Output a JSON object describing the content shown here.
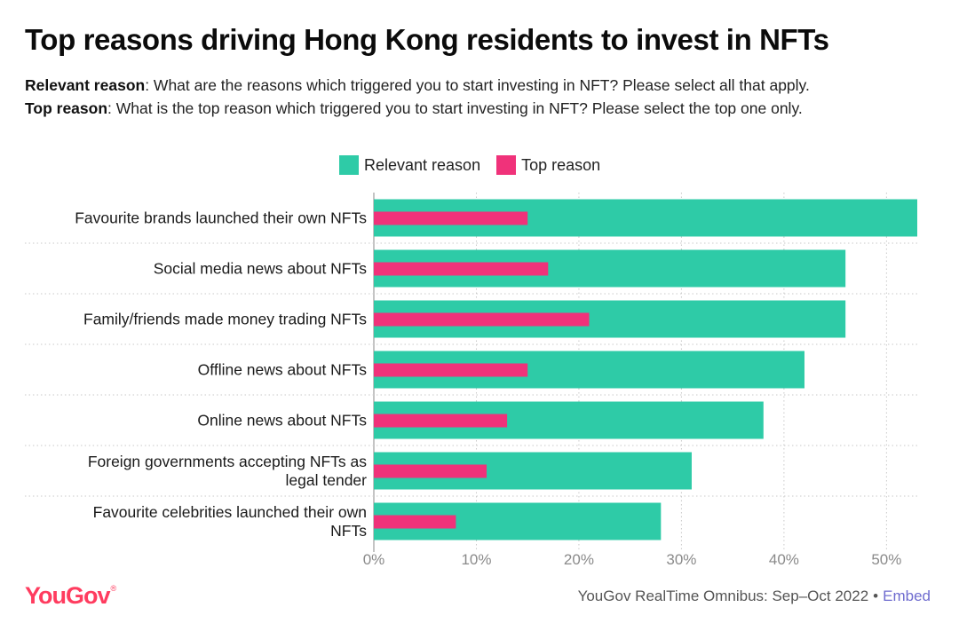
{
  "header": {
    "title": "Top reasons driving Hong Kong residents to invest in NFTs",
    "q1_label": "Relevant reason",
    "q1_text": ": What are the reasons which triggered you to start investing in NFT? Please select all that apply.",
    "q2_label": "Top reason",
    "q2_text": ": What is the top reason which triggered you to start investing in NFT? Please select the top one only."
  },
  "colors": {
    "relevant": "#2ecba7",
    "top": "#f0327a",
    "grid": "#c9c9c9",
    "axis": "#8a8a8a"
  },
  "chart_data": {
    "type": "bar",
    "orientation": "horizontal",
    "categories": [
      "Favourite brands launched their own NFTs",
      "Social media news about NFTs",
      "Family/friends made money trading NFTs",
      "Offline news about NFTs",
      "Online news about NFTs",
      "Foreign governments accepting NFTs as legal tender",
      "Favourite celebrities launched their own NFTs"
    ],
    "series": [
      {
        "name": "Relevant reason",
        "values": [
          53,
          46,
          46,
          42,
          38,
          31,
          28
        ]
      },
      {
        "name": "Top reason",
        "values": [
          15,
          17,
          21,
          15,
          13,
          11,
          8
        ]
      }
    ],
    "xlim": [
      0,
      53
    ],
    "xticks": [
      0,
      10,
      20,
      30,
      40,
      50
    ],
    "tick_suffix": "%",
    "legend": "top-center",
    "grid": true
  },
  "footer": {
    "logo": "YouGov",
    "logo_mark": "®",
    "source": "YouGov RealTime Omnibus: Sep–Oct 2022",
    "separator": "•",
    "embed": "Embed"
  }
}
